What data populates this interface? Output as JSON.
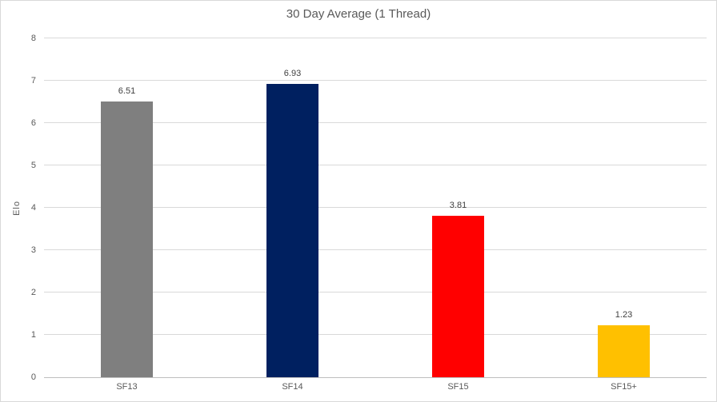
{
  "chart_data": {
    "type": "bar",
    "title": "30 Day Average (1 Thread)",
    "xlabel": "",
    "ylabel": "Elo",
    "categories": [
      "SF13",
      "SF14",
      "SF15",
      "SF15+"
    ],
    "values": [
      6.51,
      6.93,
      3.81,
      1.23
    ],
    "value_labels": [
      "6.51",
      "6.93",
      "3.81",
      "1.23"
    ],
    "bar_colors": [
      "#7f7f7f",
      "#002060",
      "#ff0000",
      "#ffc000"
    ],
    "ylim": [
      0,
      8
    ],
    "ytick_step": 1,
    "ytick_labels": [
      "0",
      "1",
      "2",
      "3",
      "4",
      "5",
      "6",
      "7",
      "8"
    ],
    "grid": "horizontal",
    "legend": "none",
    "colors": {
      "gridline": "#d9d9d9",
      "axis_line": "#bfbfbf",
      "tick_text": "#595959",
      "title_text": "#595959",
      "data_label_text": "#404040",
      "border": "#d9d9d9",
      "background": "#ffffff"
    }
  }
}
